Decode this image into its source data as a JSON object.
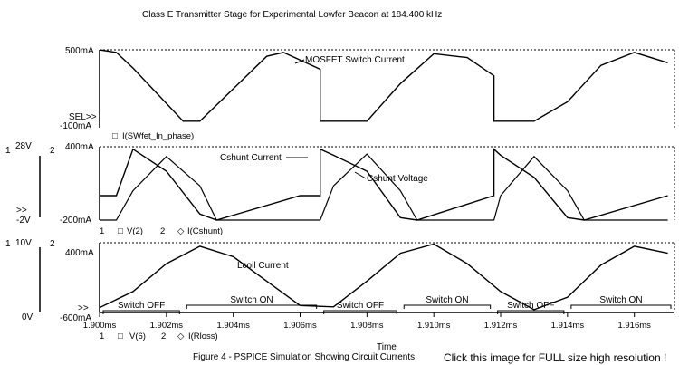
{
  "title": "Class E Transmitter Stage for Experimental Lowfer Beacon at 184.400 kHz",
  "figure_caption": "Figure 4 - PSPICE Simulation Showing Circuit Currents",
  "click_text": "Click this image for FULL size high resolution !",
  "chart_data": {
    "type": "line",
    "xlabel": "Time",
    "x_ticks": [
      "1.900ms",
      "1.902ms",
      "1.904ms",
      "1.906ms",
      "1.908ms",
      "1.910ms",
      "1.912ms",
      "1.914ms",
      "1.916ms"
    ],
    "xlim_ms": [
      1.9,
      1.9172
    ],
    "switch_states": [
      "Switch OFF",
      "Switch ON",
      "Switch OFF",
      "Switch ON",
      "Switch OFF",
      "Switch ON"
    ],
    "panels": [
      {
        "name": "MOSFET panel",
        "y_top_label": "500mA",
        "y_bottom_label": "-100mA",
        "ylim_mA": [
          -100,
          500
        ],
        "sel_marker": "SEL>>",
        "legend": [
          {
            "marker": "□",
            "text": "I(SWfet_In_phase)"
          }
        ],
        "annotations": [
          "MOSFET Switch Current"
        ],
        "series": [
          {
            "name": "I(SWfet_In_phase)",
            "unit": "mA",
            "x_ms": [
              1.9,
              1.9005,
              1.901,
              1.9025,
              1.903,
              1.904,
              1.905,
              1.9055,
              1.9066,
              1.9066,
              1.908,
              1.909,
              1.91,
              1.911,
              1.9118,
              1.9118,
              1.913,
              1.914,
              1.915,
              1.916,
              1.917
            ],
            "values": [
              500,
              480,
              360,
              -50,
              -50,
              200,
              450,
              480,
              350,
              -50,
              -50,
              240,
              470,
              440,
              300,
              -50,
              -50,
              100,
              380,
              480,
              400
            ]
          }
        ]
      },
      {
        "name": "Cshunt panel",
        "y_top_label": "400mA",
        "y_bottom_label": "-200mA",
        "left_axis_top": "28V",
        "left_axis_bottom": "-2V",
        "axis_ids": [
          "1",
          "2"
        ],
        "ylim_mA": [
          -200,
          400
        ],
        "legend": [
          {
            "marker": "□",
            "text": "V(2)"
          },
          {
            "marker": "◇",
            "text": "I(Cshunt)"
          }
        ],
        "annotations": [
          "Cshunt Current",
          "Cshunt Voltage"
        ],
        "series": [
          {
            "name": "I(Cshunt)",
            "unit": "mA",
            "x_ms": [
              1.9,
              1.9005,
              1.901,
              1.902,
              1.903,
              1.9035,
              1.906,
              1.9066,
              1.9066,
              1.907,
              1.908,
              1.909,
              1.9095,
              1.9118,
              1.9118,
              1.912,
              1.913,
              1.914,
              1.9145,
              1.917
            ],
            "values": [
              0,
              0,
              380,
              200,
              -150,
              -200,
              0,
              0,
              380,
              330,
              200,
              -180,
              -200,
              0,
              380,
              330,
              150,
              -180,
              -200,
              0
            ]
          },
          {
            "name": "V(2)",
            "unit": "V",
            "x_ms": [
              1.9,
              1.9005,
              1.901,
              1.902,
              1.903,
              1.9035,
              1.906,
              1.9066,
              1.907,
              1.908,
              1.909,
              1.9095,
              1.9118,
              1.912,
              1.913,
              1.914,
              1.9145,
              1.917
            ],
            "values": [
              -2,
              -2,
              10,
              24,
              12,
              -2,
              -2,
              -2,
              12,
              25,
              10,
              -2,
              -2,
              8,
              24,
              10,
              -2,
              -2
            ]
          }
        ]
      },
      {
        "name": "Lcoil panel",
        "y_top_label": "400mA",
        "y_bottom_label": "-600mA",
        "left_axis_top": "10V",
        "left_axis_bottom": "0V",
        "axis_ids": [
          "1",
          "2"
        ],
        "ylim_mA": [
          -600,
          400
        ],
        "legend": [
          {
            "marker": "□",
            "text": "V(6)"
          },
          {
            "marker": "◇",
            "text": "I(Rloss)"
          }
        ],
        "annotations": [
          "Lcoil Current"
        ],
        "series": [
          {
            "name": "I(Rloss)",
            "unit": "mA",
            "x_ms": [
              1.9,
              1.901,
              1.902,
              1.903,
              1.904,
              1.905,
              1.906,
              1.907,
              1.908,
              1.909,
              1.91,
              1.911,
              1.912,
              1.913,
              1.914,
              1.915,
              1.916,
              1.917
            ],
            "values": [
              -530,
              -300,
              100,
              350,
              200,
              -150,
              -500,
              -520,
              -150,
              250,
              380,
              100,
              -300,
              -560,
              -380,
              80,
              350,
              250
            ]
          }
        ]
      }
    ]
  }
}
